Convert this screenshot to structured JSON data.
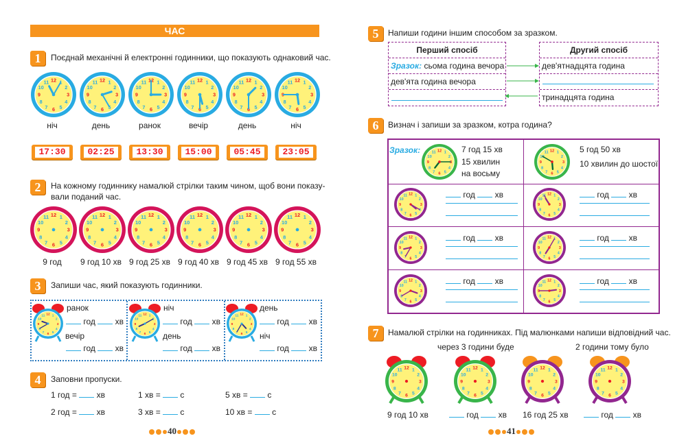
{
  "left": {
    "title": "ЧАС",
    "task1": {
      "num": "1",
      "text": "Поєднай механічні й електронні годинники, що показують однаковий час.",
      "labels": [
        "ніч",
        "день",
        "ранок",
        "вечір",
        "день",
        "ніч"
      ],
      "digital": [
        "17:30",
        "02:25",
        "13:30",
        "15:00",
        "05:45",
        "23:05"
      ]
    },
    "task2": {
      "num": "2",
      "text1": "На кожному годиннику намалюй стрілки таким чином, щоб вони показу-",
      "text2": "вали поданий час.",
      "labels": [
        "9 год",
        "9 год 10 хв",
        "9 год 25 хв",
        "9 год 40 хв",
        "9 год 45 хв",
        "9 год 55 хв"
      ]
    },
    "task3": {
      "num": "3",
      "text": "Запиши час, який показують годинники.",
      "groups": [
        {
          "a": "ранок",
          "b": "вечір"
        },
        {
          "a": "ніч",
          "b": "день"
        },
        {
          "a": "день",
          "b": "ніч"
        }
      ],
      "hour": "год",
      "min": "хв"
    },
    "task4": {
      "num": "4",
      "text": "Заповни пропуски.",
      "rows": [
        [
          "1 год = ",
          "хв",
          "1 хв = ",
          "с",
          "5 хв = ",
          "с"
        ],
        [
          "2 год = ",
          "хв",
          "3 хв = ",
          "с",
          "10 хв = ",
          "с"
        ]
      ]
    },
    "page": "40"
  },
  "right": {
    "task5": {
      "num": "5",
      "text": "Напиши години іншим способом за зразком.",
      "col1": "Перший спосіб",
      "col2": "Другий спосіб",
      "sample": "Зразок:",
      "r1a": "сьома година вечора",
      "r1b": "дев'ятнадцята година",
      "r2a": "дев'ята година вечора",
      "r3b": "тринадцята година"
    },
    "task6": {
      "num": "6",
      "text": "Визнач і запиши за зразком, котра година?",
      "sample": "Зразок:",
      "s1": [
        "7 год 15 хв",
        "15 хвилин",
        "на восьму"
      ],
      "s2": [
        "5 год 50 хв",
        "10 хвилин до шостої"
      ],
      "hour": "год",
      "min": "хв"
    },
    "task7": {
      "num": "7",
      "text": "Намалюй стрілки на годинниках. Під малюнками напиши відповідний час.",
      "cap1": "через 3 години буде",
      "cap2": "2 години тому було",
      "labels": [
        "9 год 10 хв",
        "год",
        "хв",
        "16 год 25 хв",
        "год",
        "хв"
      ]
    },
    "page": "41"
  },
  "colors": {
    "accent": "#f7941d",
    "blue": "#29abe2",
    "purple": "#92278f",
    "magenta": "#d4145a",
    "face": "#fff27a"
  }
}
